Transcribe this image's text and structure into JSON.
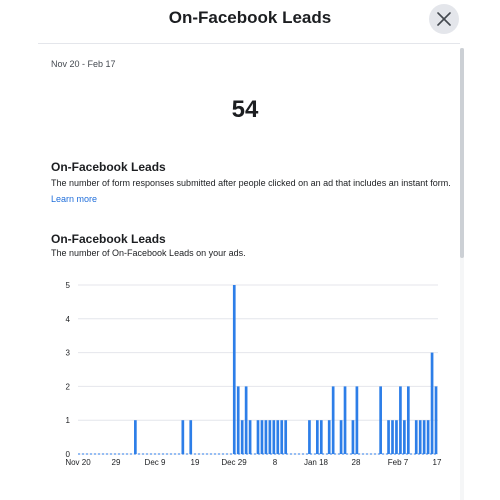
{
  "header": {
    "title": "On-Facebook Leads",
    "close_icon": "close-icon"
  },
  "summary": {
    "date_range": "Nov 20 - Feb 17",
    "total": "54"
  },
  "definition": {
    "title": "On-Facebook Leads",
    "description": "The number of form responses submitted after people clicked on an ad that includes an instant form.",
    "learn_more": "Learn more"
  },
  "chart_section": {
    "title": "On-Facebook Leads",
    "description": "The number of On-Facebook Leads on your ads."
  },
  "colors": {
    "bar": "#2d7ee8",
    "link": "#216fdb"
  },
  "chart_data": {
    "type": "bar",
    "x_start": "Nov 20",
    "x_end": "Feb 17",
    "x_tick_labels": [
      "Nov 20",
      "29",
      "Dec 9",
      "19",
      "Dec 29",
      "8",
      "Jan 18",
      "28",
      "Feb 7",
      "17"
    ],
    "ylim": [
      0,
      5
    ],
    "y_ticks": [
      "0",
      "1",
      "2",
      "3",
      "4",
      "5"
    ],
    "grid": true,
    "values": [
      0,
      0,
      0,
      0,
      0,
      0,
      0,
      0,
      0,
      0,
      0,
      0,
      0,
      0,
      1,
      0,
      0,
      0,
      0,
      0,
      0,
      0,
      0,
      0,
      0,
      0,
      1,
      0,
      1,
      0,
      0,
      0,
      0,
      0,
      0,
      0,
      0,
      0,
      0,
      5,
      2,
      1,
      2,
      1,
      0,
      1,
      1,
      1,
      1,
      1,
      1,
      1,
      1,
      0,
      0,
      0,
      0,
      0,
      1,
      0,
      1,
      1,
      0,
      1,
      2,
      0,
      1,
      2,
      0,
      1,
      2,
      0,
      0,
      0,
      0,
      0,
      2,
      0,
      1,
      1,
      1,
      2,
      1,
      2,
      0,
      1,
      1,
      1,
      1,
      3,
      2
    ]
  }
}
